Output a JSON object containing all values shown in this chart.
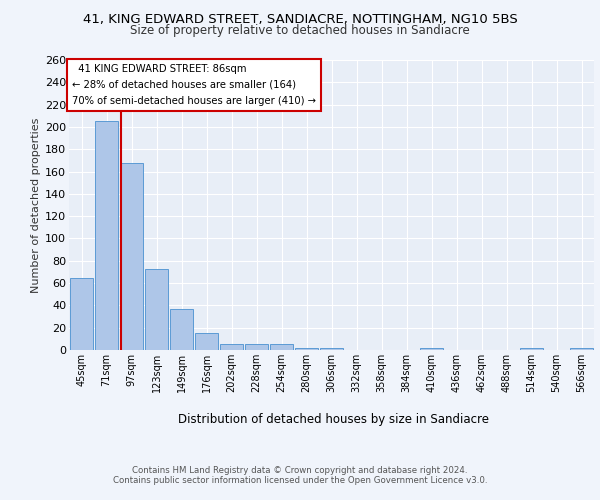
{
  "title_line1": "41, KING EDWARD STREET, SANDIACRE, NOTTINGHAM, NG10 5BS",
  "title_line2": "Size of property relative to detached houses in Sandiacre",
  "xlabel": "Distribution of detached houses by size in Sandiacre",
  "ylabel": "Number of detached properties",
  "categories": [
    "45sqm",
    "71sqm",
    "97sqm",
    "123sqm",
    "149sqm",
    "176sqm",
    "202sqm",
    "228sqm",
    "254sqm",
    "280sqm",
    "306sqm",
    "332sqm",
    "358sqm",
    "384sqm",
    "410sqm",
    "436sqm",
    "462sqm",
    "488sqm",
    "514sqm",
    "540sqm",
    "566sqm"
  ],
  "values": [
    65,
    205,
    168,
    73,
    37,
    15,
    5,
    5,
    5,
    2,
    2,
    0,
    0,
    0,
    2,
    0,
    0,
    0,
    2,
    0,
    2
  ],
  "bar_color": "#aec6e8",
  "bar_edge_color": "#5b9bd5",
  "property_size": 86,
  "property_label": "41 KING EDWARD STREET: 86sqm",
  "pct_smaller": 28,
  "n_smaller": 164,
  "pct_larger": 70,
  "n_larger": 410,
  "vline_color": "#cc0000",
  "ylim": [
    0,
    260
  ],
  "yticks": [
    0,
    20,
    40,
    60,
    80,
    100,
    120,
    140,
    160,
    180,
    200,
    220,
    240,
    260
  ],
  "background_color": "#e8eef7",
  "grid_color": "#ffffff",
  "fig_bg_color": "#f0f4fb",
  "footer1": "Contains HM Land Registry data © Crown copyright and database right 2024.",
  "footer2": "Contains public sector information licensed under the Open Government Licence v3.0."
}
